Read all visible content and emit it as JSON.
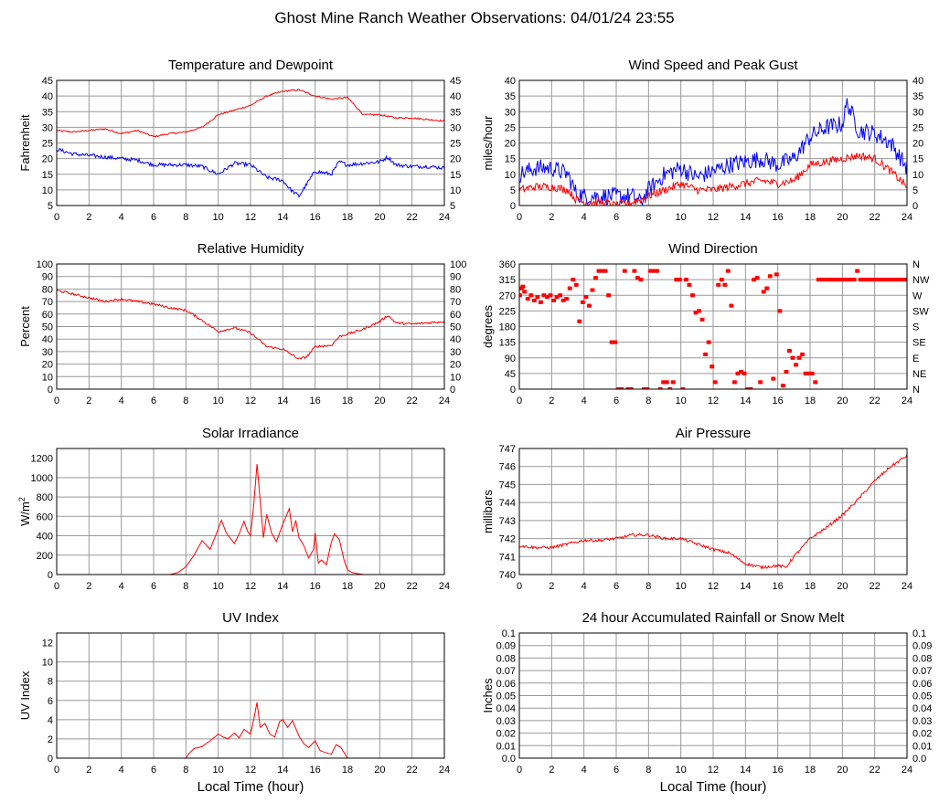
{
  "page": {
    "title": "Ghost Mine Ranch Weather Observations: 04/01/24 23:55"
  },
  "colors": {
    "red": "#ff0000",
    "blue": "#0000ff",
    "grid": "#999999",
    "axis": "#000000"
  },
  "chart_data": [
    {
      "id": "temp",
      "type": "line",
      "title": "Temperature and Dewpoint",
      "ylabel": "Fahrenheit",
      "xlabel": "",
      "xlim": [
        0,
        24
      ],
      "ylim": [
        5,
        45
      ],
      "yticks": [
        5,
        10,
        15,
        20,
        25,
        30,
        35,
        40,
        45
      ],
      "yticks_right": [
        "5",
        "10",
        "15",
        "20",
        "25",
        "30",
        "35",
        "40",
        "45"
      ],
      "grid": true,
      "series": [
        {
          "color": "red",
          "noise": 0.25,
          "x": [
            0,
            1,
            2,
            3,
            4,
            5,
            6,
            7,
            8,
            9,
            10,
            11,
            12,
            13,
            14,
            15,
            16,
            17,
            18,
            19,
            20,
            21,
            22,
            23,
            24
          ],
          "y": [
            29,
            28.5,
            29,
            29.5,
            28,
            29,
            27,
            28,
            28.5,
            30,
            34,
            35.5,
            37,
            40,
            41.5,
            42,
            40,
            39,
            39.5,
            34,
            34,
            33,
            33,
            32.5,
            32
          ]
        },
        {
          "color": "blue",
          "noise": 0.6,
          "x": [
            0,
            1,
            2,
            3,
            4,
            5,
            6,
            7,
            8,
            9,
            10,
            11,
            12,
            13,
            14,
            14.5,
            15,
            15.5,
            16,
            17,
            17.5,
            18,
            19,
            20,
            20.5,
            21,
            22,
            23,
            24
          ],
          "y": [
            23,
            21.5,
            21,
            20.5,
            20,
            19.5,
            18,
            18,
            18,
            17.5,
            15,
            18.5,
            18,
            14,
            13,
            10,
            8,
            12,
            16,
            15,
            19,
            18,
            18.5,
            19,
            20.5,
            18,
            17.5,
            17.5,
            17
          ]
        }
      ]
    },
    {
      "id": "wind",
      "type": "line",
      "title": "Wind Speed and Peak Gust",
      "ylabel": "miles/hour",
      "xlabel": "",
      "xlim": [
        0,
        24
      ],
      "ylim": [
        0,
        40
      ],
      "yticks": [
        0,
        5,
        10,
        15,
        20,
        25,
        30,
        35,
        40
      ],
      "yticks_right": [
        "0",
        "5",
        "10",
        "15",
        "20",
        "25",
        "30",
        "35",
        "40"
      ],
      "grid": true,
      "series": [
        {
          "color": "blue",
          "noise": 2.8,
          "x": [
            0,
            0.5,
            1,
            2,
            3,
            3.5,
            4,
            5,
            6,
            7,
            7.5,
            8,
            9,
            10,
            11,
            12,
            13,
            14,
            15,
            16,
            17,
            18,
            19,
            20,
            20.3,
            21,
            22,
            23,
            24
          ],
          "y": [
            10,
            11,
            12,
            12,
            10,
            4,
            3,
            3,
            3,
            3,
            1,
            5,
            10,
            12,
            9,
            11,
            13,
            14,
            15,
            13,
            15,
            22,
            25,
            26,
            33,
            24,
            23,
            20,
            12
          ]
        },
        {
          "color": "red",
          "noise": 1.3,
          "x": [
            0,
            1,
            2,
            3,
            3.5,
            4,
            5,
            6,
            7,
            8,
            9,
            10,
            11,
            12,
            13,
            14,
            15,
            16,
            17,
            18,
            19,
            20,
            21,
            22,
            23,
            24
          ],
          "y": [
            5,
            6,
            6,
            5,
            2,
            1,
            1,
            0,
            1,
            3,
            5,
            7,
            5,
            5,
            6,
            7,
            8,
            7,
            8,
            13,
            14,
            15,
            16,
            15,
            11,
            6
          ]
        }
      ]
    },
    {
      "id": "rh",
      "type": "line",
      "title": "Relative Humidity",
      "ylabel": "Percent",
      "xlabel": "",
      "xlim": [
        0,
        24
      ],
      "ylim": [
        0,
        100
      ],
      "yticks": [
        0,
        10,
        20,
        30,
        40,
        50,
        60,
        70,
        80,
        90,
        100
      ],
      "yticks_right": [
        "0",
        "10",
        "20",
        "30",
        "40",
        "50",
        "60",
        "70",
        "80",
        "90",
        "100"
      ],
      "grid": true,
      "series": [
        {
          "color": "red",
          "noise": 0.9,
          "x": [
            0,
            1,
            2,
            3,
            4,
            5,
            6,
            7,
            8,
            9,
            10,
            11,
            12,
            13,
            14,
            15,
            15.5,
            16,
            17,
            17.5,
            18,
            19,
            20,
            20.5,
            21,
            22,
            23,
            24
          ],
          "y": [
            79,
            76,
            73,
            70,
            72,
            70,
            68,
            65,
            63,
            55,
            46,
            49,
            45,
            34,
            32,
            24,
            26,
            34,
            35,
            42,
            44,
            48,
            54,
            59,
            53,
            52,
            53,
            54
          ]
        }
      ]
    },
    {
      "id": "wdir",
      "type": "scatter",
      "title": "Wind Direction",
      "ylabel": "degrees",
      "xlabel": "",
      "xlim": [
        0,
        24
      ],
      "ylim": [
        0,
        360
      ],
      "yticks": [
        0,
        45,
        90,
        135,
        180,
        225,
        270,
        315,
        360
      ],
      "yticks_right": [
        "N",
        "NE",
        "E",
        "SE",
        "S",
        "SW",
        "W",
        "NW",
        "N"
      ],
      "grid": true,
      "series": [
        {
          "color": "red",
          "x": [
            0,
            0.1,
            0.2,
            0.3,
            0.5,
            0.7,
            0.9,
            1.1,
            1.3,
            1.5,
            1.7,
            1.9,
            2.1,
            2.3,
            2.5,
            2.7,
            2.9,
            3.1,
            3.3,
            3.5,
            3.7,
            3.9,
            4.1,
            4.3,
            4.5,
            4.7,
            4.9,
            5.1,
            5.3,
            5.5,
            5.7,
            5.9,
            6.1,
            6.3,
            6.5,
            6.7,
            6.9,
            7.1,
            7.3,
            7.5,
            7.7,
            7.9,
            8.1,
            8.3,
            8.5,
            8.7,
            8.9,
            9.1,
            9.3,
            9.5,
            9.7,
            9.9,
            10.1,
            10.3,
            10.5,
            10.7,
            10.9,
            11.1,
            11.3,
            11.5,
            11.7,
            11.9,
            12.1,
            12.3,
            12.5,
            12.7,
            12.9,
            13.1,
            13.3,
            13.5,
            13.7,
            13.9,
            14.1,
            14.3,
            14.5,
            14.7,
            14.9,
            15.1,
            15.3,
            15.5,
            15.7,
            15.9,
            16.1,
            16.3,
            16.5,
            16.7,
            16.9,
            17.1,
            17.3,
            17.5,
            17.7,
            17.9,
            18.1,
            18.3,
            18.5,
            18.7,
            18.9,
            19.1,
            19.3,
            19.5,
            19.7,
            19.9,
            20.1,
            20.3,
            20.5,
            20.7,
            20.9,
            21.1,
            21.3,
            21.5,
            21.7,
            21.9,
            22.1,
            22.3,
            22.5,
            22.7,
            22.9,
            23.1,
            23.3,
            23.5,
            23.7,
            23.9
          ],
          "y": [
            270,
            290,
            295,
            280,
            260,
            270,
            255,
            265,
            250,
            270,
            265,
            270,
            255,
            265,
            270,
            255,
            260,
            290,
            315,
            300,
            195,
            250,
            265,
            240,
            285,
            320,
            340,
            340,
            340,
            270,
            135,
            135,
            0,
            0,
            340,
            0,
            0,
            340,
            320,
            315,
            0,
            0,
            340,
            340,
            340,
            0,
            20,
            20,
            0,
            20,
            315,
            315,
            0,
            315,
            300,
            270,
            220,
            225,
            200,
            100,
            135,
            65,
            20,
            300,
            315,
            300,
            340,
            240,
            20,
            45,
            50,
            45,
            0,
            0,
            315,
            320,
            20,
            280,
            290,
            325,
            30,
            330,
            225,
            10,
            50,
            110,
            90,
            70,
            90,
            100,
            45,
            45,
            45,
            20,
            315,
            315,
            315,
            315,
            315,
            315,
            315,
            315,
            315,
            315,
            315,
            315,
            340,
            315,
            315,
            315,
            315,
            315,
            315,
            315,
            315,
            315,
            315,
            315,
            315,
            315,
            315,
            315
          ]
        }
      ]
    },
    {
      "id": "solar",
      "type": "line",
      "title": "Solar Irradiance",
      "ylabel": "W/m",
      "ylabel_sup": "2",
      "xlabel": "",
      "xlim": [
        0,
        24
      ],
      "ylim": [
        0,
        1300
      ],
      "yticks": [
        0,
        200,
        400,
        600,
        800,
        1000,
        1200
      ],
      "yticks_right": [],
      "grid": true,
      "series": [
        {
          "color": "red",
          "noise": 0,
          "x": [
            0,
            6,
            7,
            7.5,
            8,
            8.5,
            9,
            9.5,
            10,
            10.2,
            10.5,
            11,
            11.3,
            11.6,
            11.8,
            12,
            12.2,
            12.4,
            12.6,
            12.8,
            13,
            13.3,
            13.6,
            14,
            14.2,
            14.4,
            14.6,
            14.8,
            15,
            15.3,
            15.6,
            15.9,
            16,
            16.2,
            16.4,
            16.7,
            17,
            17.2,
            17.5,
            17.8,
            18,
            18.3,
            18.6,
            19,
            20,
            24
          ],
          "y": [
            0,
            0,
            0,
            20,
            80,
            200,
            350,
            260,
            470,
            560,
            430,
            320,
            420,
            550,
            450,
            400,
            720,
            1140,
            760,
            380,
            620,
            430,
            340,
            520,
            600,
            680,
            440,
            560,
            380,
            300,
            170,
            260,
            430,
            120,
            150,
            100,
            330,
            420,
            360,
            140,
            50,
            20,
            10,
            0,
            0,
            0
          ]
        }
      ]
    },
    {
      "id": "pressure",
      "type": "line",
      "title": "Air Pressure",
      "ylabel": "millibars",
      "xlabel": "",
      "xlim": [
        0,
        24
      ],
      "ylim": [
        740,
        747
      ],
      "yticks": [
        740,
        741,
        742,
        743,
        744,
        745,
        746,
        747
      ],
      "yticks_right": [],
      "grid": true,
      "series": [
        {
          "color": "red",
          "noise": 0.08,
          "x": [
            0,
            1,
            2,
            3,
            4,
            5,
            6,
            7,
            8,
            9,
            10,
            11,
            12,
            13,
            14,
            14.5,
            15,
            16,
            16.5,
            17,
            18,
            19,
            20,
            21,
            22,
            23,
            24
          ],
          "y": [
            741.6,
            741.5,
            741.5,
            741.7,
            741.9,
            741.9,
            742.0,
            742.2,
            742.2,
            742.0,
            742.0,
            741.7,
            741.4,
            741.2,
            740.6,
            740.5,
            740.4,
            740.5,
            740.4,
            741.0,
            742.0,
            742.6,
            743.3,
            744.2,
            745.2,
            746.0,
            746.6
          ]
        }
      ]
    },
    {
      "id": "uv",
      "type": "line",
      "title": "UV Index",
      "ylabel": "UV Index",
      "xlabel": "Local Time (hour)",
      "xlim": [
        0,
        24
      ],
      "ylim": [
        0,
        13
      ],
      "yticks": [
        0,
        2,
        4,
        6,
        8,
        10,
        12
      ],
      "yticks_right": [],
      "grid": true,
      "series": [
        {
          "color": "red",
          "noise": 0,
          "x": [
            0,
            8,
            8.2,
            8.5,
            9,
            9.5,
            10,
            10.3,
            10.6,
            11,
            11.3,
            11.6,
            12,
            12.2,
            12.4,
            12.6,
            12.9,
            13.2,
            13.5,
            13.8,
            14,
            14.3,
            14.6,
            15,
            15.3,
            15.6,
            16,
            16.3,
            16.6,
            17,
            17.3,
            17.6,
            18,
            24
          ],
          "y": [
            0,
            0,
            0.5,
            1,
            1.2,
            1.8,
            2.5,
            2.2,
            2.0,
            2.6,
            2.1,
            3.0,
            2.5,
            4.0,
            5.8,
            3.2,
            3.6,
            2.5,
            2.2,
            3.8,
            4.0,
            3.2,
            3.9,
            2.3,
            1.5,
            1.1,
            1.8,
            0.8,
            0.6,
            0.4,
            1.4,
            1.1,
            0,
            0
          ]
        }
      ]
    },
    {
      "id": "rain",
      "type": "line",
      "title": "24 hour Accumulated Rainfall or Snow Melt",
      "ylabel": "Inches",
      "xlabel": "Local Time (hour)",
      "xlim": [
        0,
        24
      ],
      "ylim": [
        0,
        0.1
      ],
      "yticks": [
        0,
        0.01,
        0.02,
        0.03,
        0.04,
        0.05,
        0.06,
        0.07,
        0.08,
        0.09,
        0.1
      ],
      "ytick_labels": [
        "0.0",
        "0.01",
        "0.02",
        "0.03",
        "0.04",
        "0.05",
        "0.06",
        "0.07",
        "0.08",
        "0.09",
        "0.1"
      ],
      "yticks_right": [
        "0.0",
        "0.01",
        "0.02",
        "0.03",
        "0.04",
        "0.05",
        "0.06",
        "0.07",
        "0.08",
        "0.09",
        "0.1"
      ],
      "grid": true,
      "series": [
        {
          "color": "red",
          "noise": 0,
          "x": [
            0,
            24
          ],
          "y": [
            0,
            0
          ]
        }
      ]
    }
  ],
  "xticks": [
    0,
    2,
    4,
    6,
    8,
    10,
    12,
    14,
    16,
    18,
    20,
    22,
    24
  ]
}
